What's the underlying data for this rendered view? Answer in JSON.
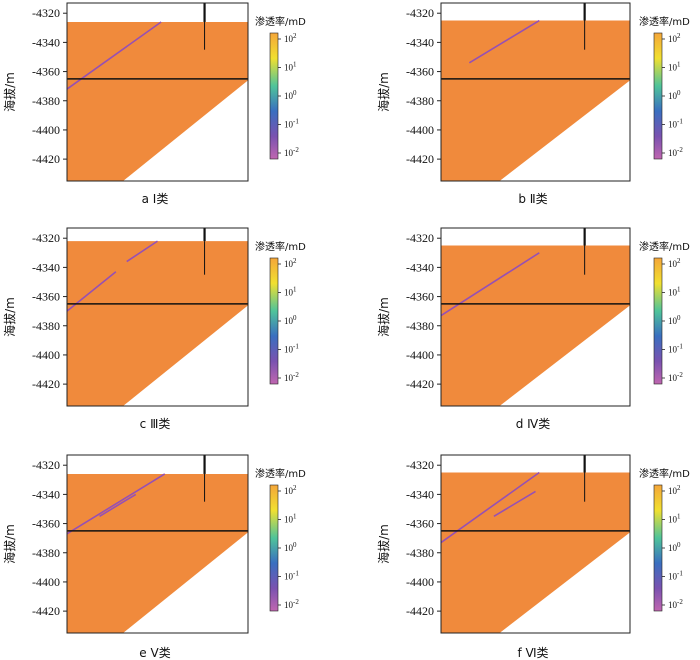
{
  "chart_data": {
    "type": "section-plot-grid",
    "shared": {
      "ylabel": "海拔/m",
      "ylim": [
        -4435,
        -4313
      ],
      "yticks": [
        -4320,
        -4340,
        -4360,
        -4380,
        -4400,
        -4420
      ],
      "ytick_labels": [
        "-4320",
        "-4340",
        "-4360",
        "-4380",
        "-4400",
        "-4420"
      ],
      "horizontal_line_elevation": -4365,
      "well_bottom_elevation": -4345,
      "colorbar": {
        "title": "渗透率/mD",
        "ticks": [
          {
            "base": "10",
            "exp": "2"
          },
          {
            "base": "10",
            "exp": "1"
          },
          {
            "base": "10",
            "exp": "0"
          },
          {
            "base": "10",
            "exp": "-1"
          },
          {
            "base": "10",
            "exp": "-2"
          }
        ],
        "colors": [
          "#f4a63a",
          "#f1e030",
          "#4fc49a",
          "#3a6fc0",
          "#9a4fa8",
          "#c066b0"
        ]
      },
      "colors": {
        "reservoir": "#f08a3c",
        "fracture": "#9650b4",
        "line": "#111111"
      }
    },
    "panels": [
      {
        "letter": "a",
        "label": "Ⅰ类",
        "top": -4326,
        "well_top": -4313,
        "tops": [
          -4326,
          -4326
        ],
        "fractures": [
          [
            [
              0.0,
              -4372
            ],
            [
              0.52,
              -4326
            ]
          ]
        ]
      },
      {
        "letter": "b",
        "label": "Ⅱ类",
        "top": -4325,
        "well_top": -4313,
        "tops": [
          -4325,
          -4325
        ],
        "fractures": [
          [
            [
              0.15,
              -4354
            ],
            [
              0.52,
              -4325
            ]
          ]
        ]
      },
      {
        "letter": "c",
        "label": "Ⅲ类",
        "top": -4322,
        "well_top": -4310,
        "tops": [
          -4322,
          -4322
        ],
        "fractures": [
          [
            [
              0.0,
              -4370
            ],
            [
              0.27,
              -4343
            ]
          ],
          [
            [
              0.33,
              -4336
            ],
            [
              0.5,
              -4322
            ]
          ]
        ]
      },
      {
        "letter": "d",
        "label": "Ⅳ类",
        "top": -4325,
        "well_top": -4313,
        "tops": [
          -4325,
          -4325
        ],
        "fractures": [
          [
            [
              0.0,
              -4373
            ],
            [
              0.52,
              -4330
            ]
          ]
        ]
      },
      {
        "letter": "e",
        "label": "Ⅴ类",
        "top": -4326,
        "well_top": -4313,
        "tops": [
          -4326,
          -4326
        ],
        "fractures": [
          [
            [
              0.0,
              -4367
            ],
            [
              0.54,
              -4326
            ]
          ],
          [
            [
              0.18,
              -4355
            ],
            [
              0.38,
              -4340
            ]
          ]
        ]
      },
      {
        "letter": "f",
        "label": "Ⅵ类",
        "top": -4325,
        "well_top": -4313,
        "tops": [
          -4325,
          -4325
        ],
        "fractures": [
          [
            [
              0.0,
              -4373
            ],
            [
              0.52,
              -4325
            ]
          ],
          [
            [
              0.28,
              -4355
            ],
            [
              0.5,
              -4338
            ]
          ]
        ]
      }
    ]
  }
}
